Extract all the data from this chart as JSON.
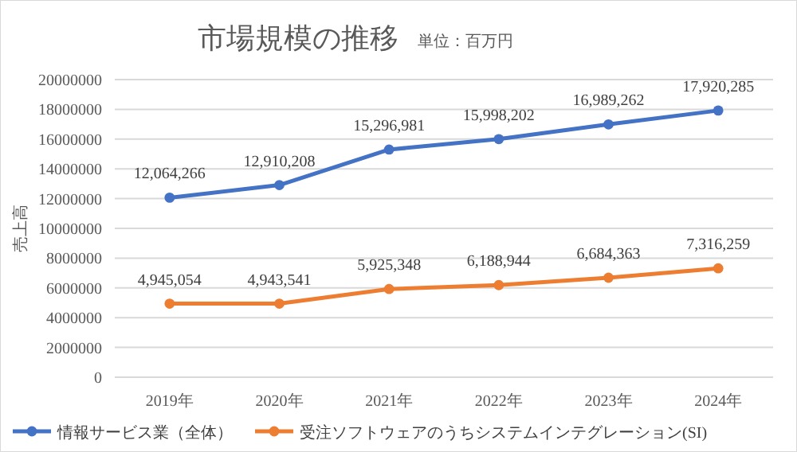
{
  "chart_data": {
    "type": "line",
    "title": "市場規模の推移",
    "subtitle": "単位：百万円",
    "ylabel": "売上高",
    "categories": [
      "2019年",
      "2020年",
      "2021年",
      "2022年",
      "2023年",
      "2024年"
    ],
    "series": [
      {
        "name": "情報サービス業（全体）",
        "color": "#4472c4",
        "values": [
          12064266,
          12910208,
          15296981,
          15998202,
          16989262,
          17920285
        ],
        "value_labels": [
          "12,064,266",
          "12,910,208",
          "15,296,981",
          "15,998,202",
          "16,989,262",
          "17,920,285"
        ]
      },
      {
        "name": "受注ソフトウェアのうちシステムインテグレーション(SI)",
        "color": "#ed7d31",
        "values": [
          4945054,
          4943541,
          5925348,
          6188944,
          6684363,
          7316259
        ],
        "value_labels": [
          "4,945,054",
          "4,943,541",
          "5,925,348",
          "6,188,944",
          "6,684,363",
          "7,316,259"
        ]
      }
    ],
    "ylim": [
      0,
      20000000
    ],
    "yticks": [
      0,
      2000000,
      4000000,
      6000000,
      8000000,
      10000000,
      12000000,
      14000000,
      16000000,
      18000000,
      20000000
    ],
    "grid": "y",
    "legend": "bottom",
    "marker": "circle",
    "line_style": "solid"
  }
}
